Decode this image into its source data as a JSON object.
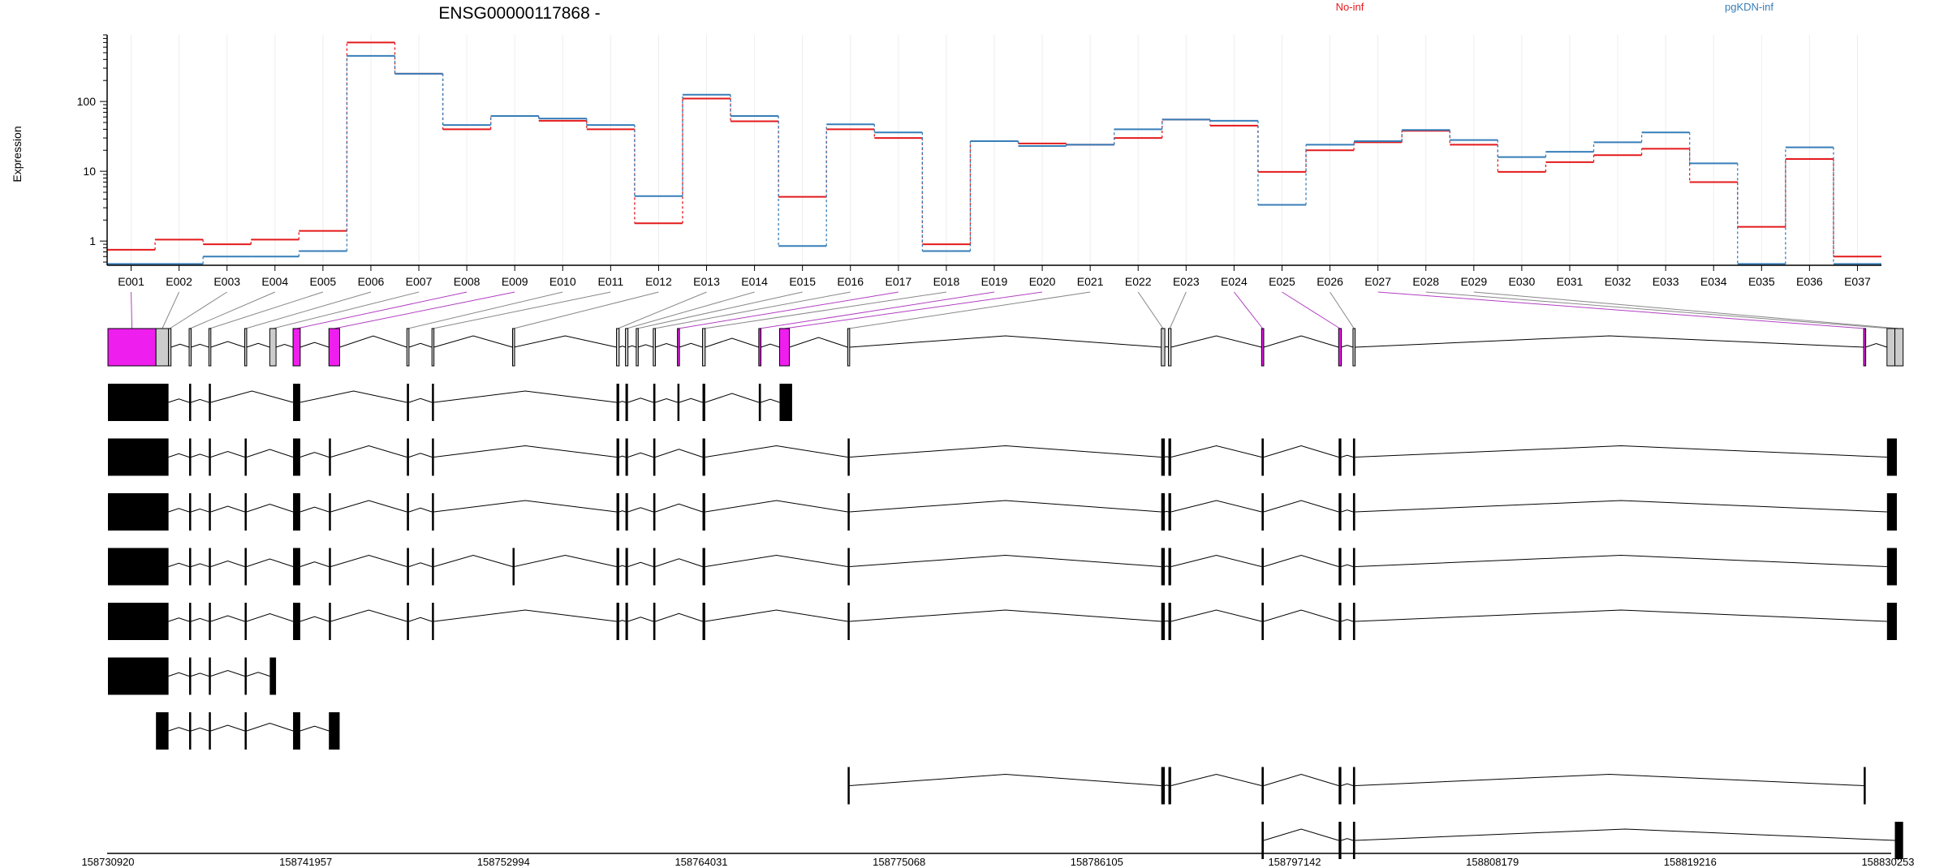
{
  "chart_data": {
    "type": "line",
    "title": "ENSG00000117868 -",
    "xlabel": "",
    "ylabel": "Expression",
    "yscale": "log",
    "ylim": [
      0.45,
      900
    ],
    "yticks": [
      1,
      10,
      100
    ],
    "yticklabels": [
      "1",
      "10",
      "100"
    ],
    "grid": true,
    "legend_position": "top",
    "categories": [
      "E001",
      "E002",
      "E003",
      "E004",
      "E005",
      "E006",
      "E007",
      "E008",
      "E009",
      "E010",
      "E011",
      "E012",
      "E013",
      "E014",
      "E015",
      "E016",
      "E017",
      "E018",
      "E019",
      "E020",
      "E021",
      "E022",
      "E023",
      "E024",
      "E025",
      "E026",
      "E027",
      "E028",
      "E029",
      "E030",
      "E031",
      "E032",
      "E033",
      "E034",
      "E035",
      "E036",
      "E037"
    ],
    "series": [
      {
        "name": "No-inf",
        "color": "#e41a1c",
        "values": [
          0.75,
          1.05,
          0.9,
          1.05,
          1.4,
          700,
          250,
          40,
          62,
          53,
          40,
          1.8,
          110,
          52,
          4.3,
          40,
          30,
          0.9,
          27,
          25,
          24,
          30,
          55,
          45,
          9.8,
          20,
          26,
          38,
          24,
          9.8,
          13.5,
          17,
          21,
          7,
          1.6,
          15,
          0.6
        ]
      },
      {
        "name": "pgKDN-inf",
        "color": "#377eb8",
        "values": [
          0.47,
          0.47,
          0.6,
          0.6,
          0.72,
          450,
          250,
          46,
          62,
          57,
          46,
          4.4,
          125,
          62,
          0.85,
          47,
          36,
          0.72,
          27,
          23,
          24,
          40,
          55,
          53,
          3.3,
          24,
          27,
          39,
          28,
          16,
          19,
          26,
          36,
          13,
          0.47,
          22,
          0.47
        ]
      }
    ],
    "gene_model": {
      "genomic_ticks": [
        "158730920",
        "158741957",
        "158752994",
        "158764031",
        "158775068",
        "158786105",
        "158797142",
        "158808179",
        "158819216",
        "158830253"
      ],
      "exons": [
        {
          "start": 158730920,
          "end": 158733600,
          "tested": true
        },
        {
          "start": 158733600,
          "end": 158734300,
          "tested": false
        },
        {
          "start": 158734300,
          "end": 158734440,
          "tested": false
        },
        {
          "start": 158735450,
          "end": 158735560,
          "tested": false
        },
        {
          "start": 158736550,
          "end": 158736660,
          "tested": false
        },
        {
          "start": 158738550,
          "end": 158738660,
          "tested": false
        },
        {
          "start": 158739950,
          "end": 158740300,
          "tested": false
        },
        {
          "start": 158741250,
          "end": 158741650,
          "tested": true
        },
        {
          "start": 158743250,
          "end": 158743850,
          "tested": true
        },
        {
          "start": 158747600,
          "end": 158747720,
          "tested": false
        },
        {
          "start": 158749000,
          "end": 158749110,
          "tested": false
        },
        {
          "start": 158753500,
          "end": 158753580,
          "tested": false
        },
        {
          "start": 158759300,
          "end": 158759450,
          "tested": false
        },
        {
          "start": 158759800,
          "end": 158759940,
          "tested": false
        },
        {
          "start": 158760400,
          "end": 158760500,
          "tested": false
        },
        {
          "start": 158761350,
          "end": 158761470,
          "tested": false
        },
        {
          "start": 158762700,
          "end": 158762810,
          "tested": true
        },
        {
          "start": 158764100,
          "end": 158764250,
          "tested": false
        },
        {
          "start": 158767240,
          "end": 158767360,
          "tested": true
        },
        {
          "start": 158768400,
          "end": 158768950,
          "tested": true
        },
        {
          "start": 158772200,
          "end": 158772310,
          "tested": false
        },
        {
          "start": 158789700,
          "end": 158789900,
          "tested": false
        },
        {
          "start": 158790100,
          "end": 158790250,
          "tested": false
        },
        {
          "start": 158795300,
          "end": 158795420,
          "tested": true
        },
        {
          "start": 158799600,
          "end": 158799750,
          "tested": true
        },
        {
          "start": 158800400,
          "end": 158800520,
          "tested": false
        },
        {
          "start": 158828900,
          "end": 158829000,
          "tested": true
        },
        {
          "start": 158830200,
          "end": 158830640,
          "tested": false
        },
        {
          "start": 158830640,
          "end": 158831100,
          "tested": false
        }
      ],
      "transcripts": [
        [
          [
            158730920,
            158734300
          ],
          [
            158735450,
            158735560
          ],
          [
            158736550,
            158736660
          ],
          [
            158741250,
            158741650
          ],
          [
            158747600,
            158747720
          ],
          [
            158749000,
            158749110
          ],
          [
            158759300,
            158759450
          ],
          [
            158759800,
            158759940
          ],
          [
            158761350,
            158761470
          ],
          [
            158762700,
            158762810
          ],
          [
            158764100,
            158764250
          ],
          [
            158767240,
            158767360
          ],
          [
            158768400,
            158769100
          ]
        ],
        [
          [
            158730920,
            158734300
          ],
          [
            158735450,
            158735560
          ],
          [
            158736550,
            158736660
          ],
          [
            158738550,
            158738660
          ],
          [
            158741250,
            158741650
          ],
          [
            158743250,
            158743350
          ],
          [
            158747600,
            158747720
          ],
          [
            158749000,
            158749110
          ],
          [
            158759300,
            158759450
          ],
          [
            158759800,
            158759940
          ],
          [
            158761350,
            158761470
          ],
          [
            158764100,
            158764250
          ],
          [
            158772200,
            158772310
          ],
          [
            158789700,
            158789900
          ],
          [
            158790100,
            158790250
          ],
          [
            158795300,
            158795420
          ],
          [
            158799600,
            158799750
          ],
          [
            158800400,
            158800520
          ],
          [
            158830200,
            158830750
          ]
        ],
        [
          [
            158730920,
            158734300
          ],
          [
            158735450,
            158735560
          ],
          [
            158736550,
            158736660
          ],
          [
            158738550,
            158738660
          ],
          [
            158741250,
            158741650
          ],
          [
            158743250,
            158743350
          ],
          [
            158747600,
            158747720
          ],
          [
            158749000,
            158749110
          ],
          [
            158759300,
            158759450
          ],
          [
            158759800,
            158759940
          ],
          [
            158761350,
            158761470
          ],
          [
            158764100,
            158764250
          ],
          [
            158772200,
            158772310
          ],
          [
            158789700,
            158789900
          ],
          [
            158790100,
            158790250
          ],
          [
            158795300,
            158795420
          ],
          [
            158799600,
            158799750
          ],
          [
            158800400,
            158800520
          ],
          [
            158830200,
            158830750
          ]
        ],
        [
          [
            158730920,
            158734300
          ],
          [
            158735450,
            158735560
          ],
          [
            158736550,
            158736660
          ],
          [
            158738550,
            158738660
          ],
          [
            158741250,
            158741650
          ],
          [
            158743250,
            158743350
          ],
          [
            158747600,
            158747720
          ],
          [
            158749000,
            158749110
          ],
          [
            158753500,
            158753580
          ],
          [
            158759300,
            158759450
          ],
          [
            158759800,
            158759940
          ],
          [
            158761350,
            158761470
          ],
          [
            158764100,
            158764250
          ],
          [
            158772200,
            158772310
          ],
          [
            158789700,
            158789900
          ],
          [
            158790100,
            158790250
          ],
          [
            158795300,
            158795420
          ],
          [
            158799600,
            158799750
          ],
          [
            158800400,
            158800520
          ],
          [
            158830200,
            158830750
          ]
        ],
        [
          [
            158730920,
            158734300
          ],
          [
            158735450,
            158735560
          ],
          [
            158736550,
            158736660
          ],
          [
            158738550,
            158738660
          ],
          [
            158741250,
            158741650
          ],
          [
            158743250,
            158743350
          ],
          [
            158747600,
            158747720
          ],
          [
            158749000,
            158749110
          ],
          [
            158759300,
            158759450
          ],
          [
            158759800,
            158759940
          ],
          [
            158761350,
            158761470
          ],
          [
            158764100,
            158764250
          ],
          [
            158772200,
            158772310
          ],
          [
            158789700,
            158789900
          ],
          [
            158790100,
            158790250
          ],
          [
            158795300,
            158795420
          ],
          [
            158799600,
            158799750
          ],
          [
            158800400,
            158800520
          ],
          [
            158830200,
            158830750
          ]
        ],
        [
          [
            158730920,
            158734300
          ],
          [
            158735450,
            158735560
          ],
          [
            158736550,
            158736660
          ],
          [
            158738550,
            158738660
          ],
          [
            158739950,
            158740300
          ]
        ],
        [
          [
            158733600,
            158734300
          ],
          [
            158735450,
            158735560
          ],
          [
            158736550,
            158736660
          ],
          [
            158738550,
            158738660
          ],
          [
            158741250,
            158741650
          ],
          [
            158743250,
            158743850
          ]
        ],
        [
          [
            158772200,
            158772310
          ],
          [
            158789700,
            158789900
          ],
          [
            158790100,
            158790250
          ],
          [
            158795300,
            158795420
          ],
          [
            158799600,
            158799750
          ],
          [
            158800400,
            158800520
          ],
          [
            158828900,
            158829000
          ]
        ],
        [
          [
            158795300,
            158795420
          ],
          [
            158799600,
            158799750
          ],
          [
            158800400,
            158800520
          ],
          [
            158830640,
            158831100
          ]
        ]
      ],
      "colors": {
        "tested": "#ee1eee",
        "untested": "#cccccc",
        "transcript": "#000000"
      }
    }
  }
}
